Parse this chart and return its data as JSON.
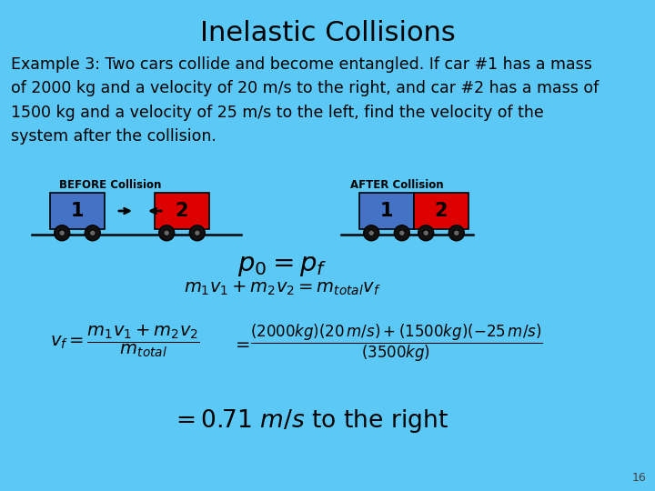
{
  "title": "Inelastic Collisions",
  "bg_color": "#5BC8F5",
  "title_fontsize": 22,
  "body_text_lines": [
    "Example 3: Two cars collide and become entangled. If car #1 has a mass",
    "of 2000 kg and a velocity of 20 m/s to the right, and car #2 has a mass of",
    "1500 kg and a velocity of 25 m/s to the left, find the velocity of the",
    "system after the collision."
  ],
  "body_fontsize": 12.5,
  "before_label": "BEFORE Collision",
  "after_label": "AFTER Collision",
  "car1_color": "#4472C4",
  "car2_color": "#DD0000",
  "wheel_color": "#111111",
  "page_number": "16"
}
